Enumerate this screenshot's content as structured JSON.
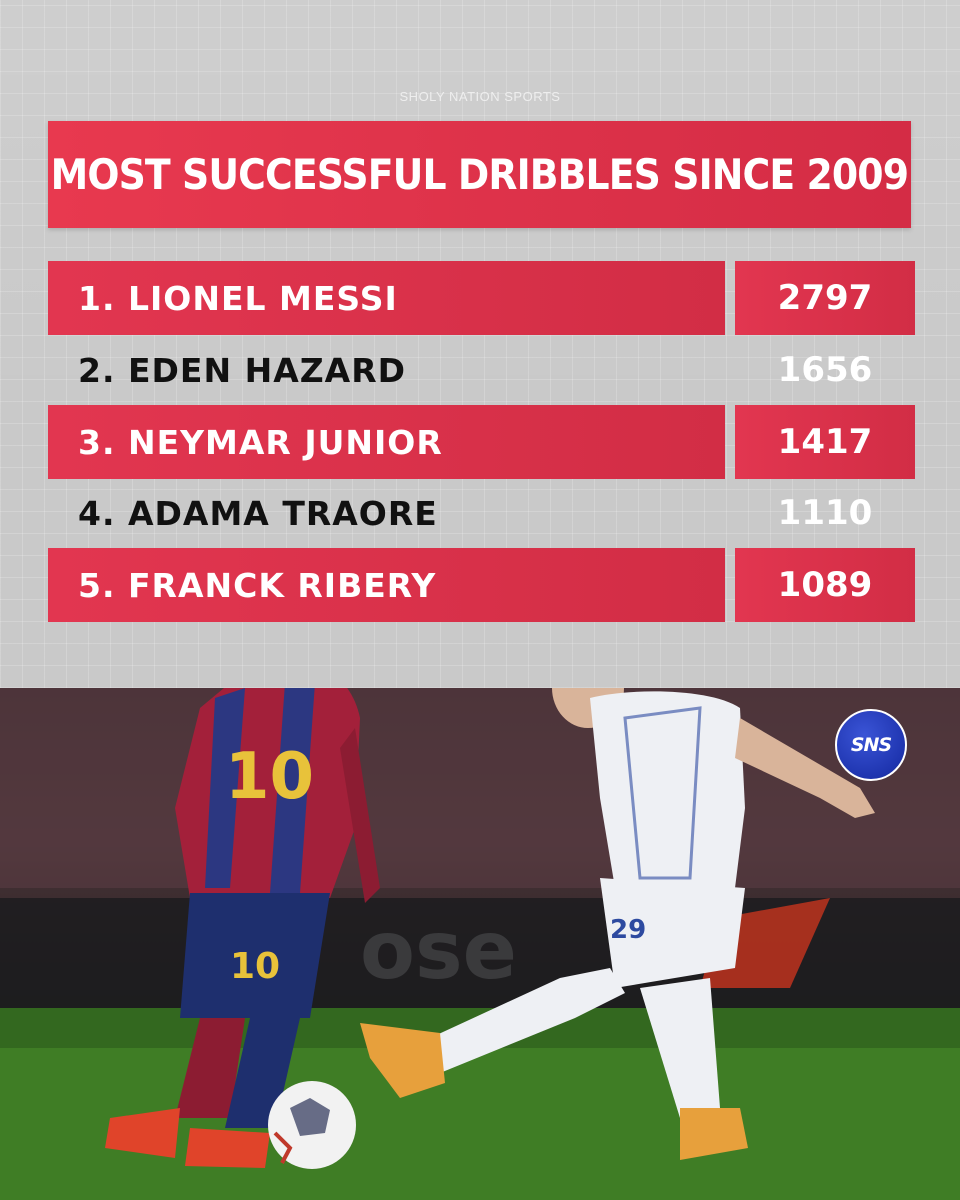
{
  "brand": "SHOLY NATION SPORTS",
  "title": "MOST SUCCESSFUL DRIBBLES SINCE 2009",
  "colors": {
    "accent": "#dc3249",
    "background": "#c9c9c9",
    "badge": "#1f35b0"
  },
  "rankings": [
    {
      "label": "1.  LIONEL MESSI",
      "value": "2797"
    },
    {
      "label": "2. EDEN HAZARD",
      "value": "1656"
    },
    {
      "label": "3. NEYMAR JUNIOR",
      "value": "1417"
    },
    {
      "label": "4. ADAMA TRAORE",
      "value": "1110"
    },
    {
      "label": "5. FRANCK RIBERY",
      "value": "1089"
    }
  ],
  "badge": "SNS",
  "shirt_number": "10",
  "opponent_number": "29",
  "sponsor_text": "ose"
}
